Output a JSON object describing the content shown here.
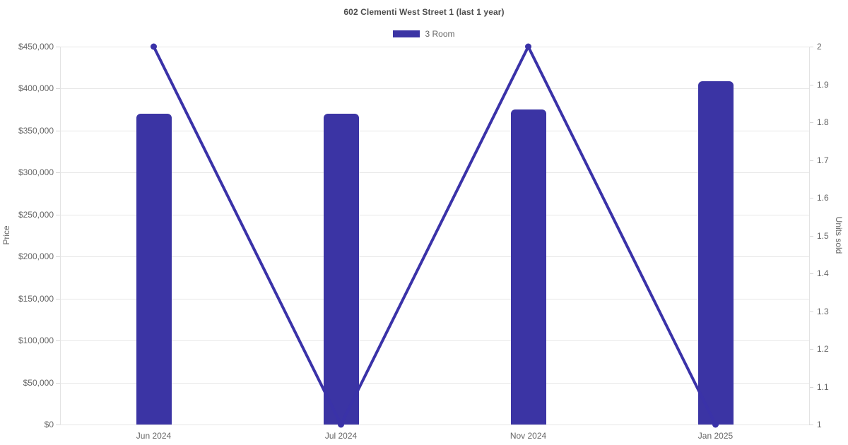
{
  "chart_data": {
    "type": "bar",
    "title": "602 Clementi West Street 1 (last 1 year)",
    "categories": [
      "Jun 2024",
      "Jul 2024",
      "Nov 2024",
      "Jan 2025"
    ],
    "series": [
      {
        "name": "3 Room",
        "type": "bar",
        "yaxis": "left",
        "color": "#3b34a4",
        "values": [
          370000,
          370000,
          375000,
          409000
        ]
      },
      {
        "name": "3 Room",
        "type": "line",
        "yaxis": "right",
        "color": "#3a32a8",
        "values": [
          2,
          1,
          2,
          1
        ]
      }
    ],
    "y_left": {
      "label": "Price",
      "min": 0,
      "max": 450000,
      "tick_labels": [
        "$0",
        "$50,000",
        "$100,000",
        "$150,000",
        "$200,000",
        "$250,000",
        "$300,000",
        "$350,000",
        "$400,000",
        "$450,000"
      ]
    },
    "y_right": {
      "label": "Units sold",
      "min": 1,
      "max": 2,
      "tick_labels": [
        "1",
        "1.1",
        "1.2",
        "1.3",
        "1.4",
        "1.5",
        "1.6",
        "1.7",
        "1.8",
        "1.9",
        "2"
      ]
    },
    "grid": true,
    "legend_position": "top"
  },
  "ui_colors": {
    "grid": "#e7e7e7",
    "axis_line": "#e3e3e3",
    "tick_mark": "#d6d6d6",
    "tick_text": "#666666",
    "title_text": "#4d4d4d"
  }
}
